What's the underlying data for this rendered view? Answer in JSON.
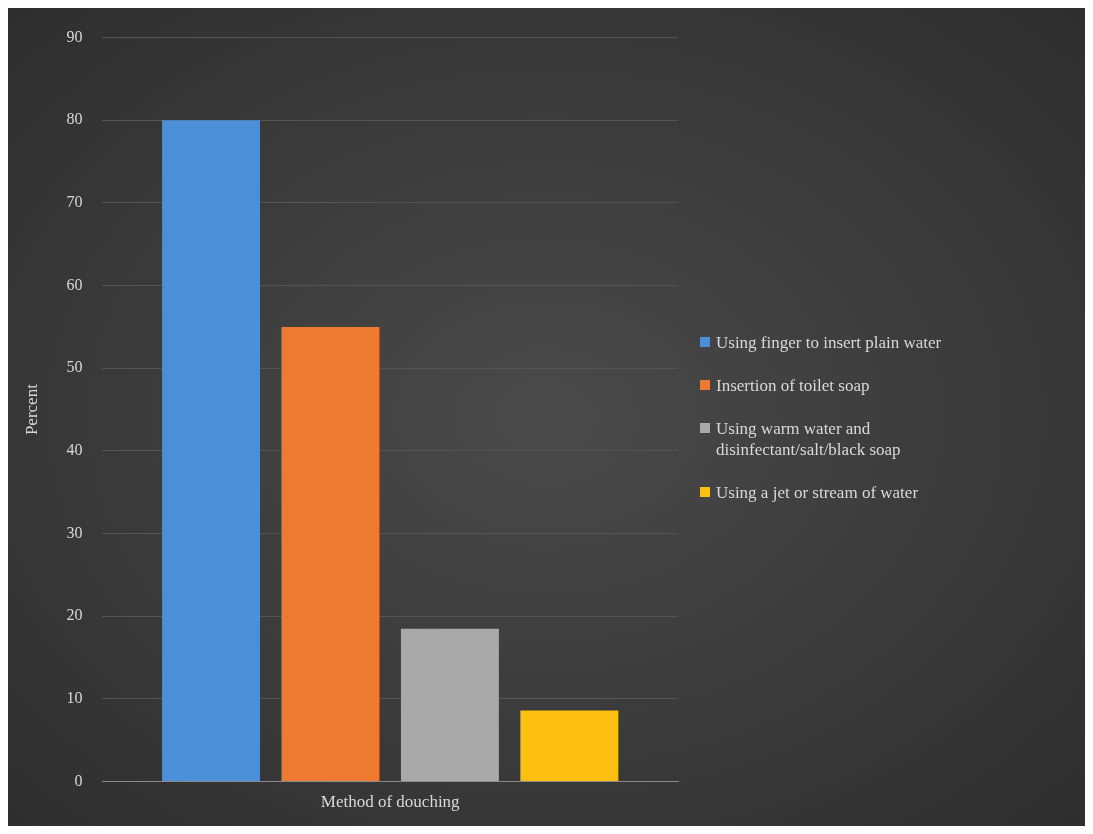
{
  "chart_data": {
    "type": "bar",
    "categories": [
      "Method of douching"
    ],
    "ylabel": "Percent",
    "series": [
      {
        "name": "Using finger to insert plain water",
        "color": "#4a8fd8",
        "values": [
          80
        ]
      },
      {
        "name": "Insertion of toilet soap",
        "color": "#ed7a30",
        "values": [
          55
        ]
      },
      {
        "name": "Using warm water and disinfectant/salt/black soap",
        "color": "#a9a9a9",
        "values": [
          18.5
        ]
      },
      {
        "name": "Using a jet or stream of water",
        "color": "#fdc010",
        "values": [
          8.6
        ]
      }
    ],
    "ylim": [
      0,
      90
    ],
    "yticks": [
      0,
      10,
      20,
      30,
      40,
      50,
      60,
      70,
      80,
      90
    ],
    "grid": "y",
    "legend": "right"
  }
}
